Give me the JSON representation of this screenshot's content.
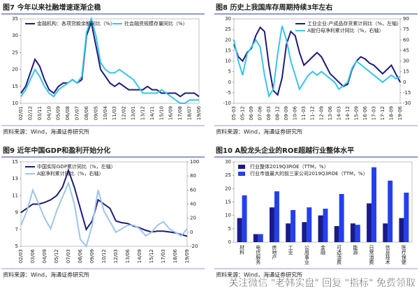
{
  "chart_data": [
    {
      "type": "line",
      "title": "图7  今年以来社融增速逐渐企稳",
      "source": "资料来源：Wind，海通证券研究所",
      "legend": "upper center",
      "categories": [
        "02/01",
        null,
        "02/12",
        null,
        "03/11",
        null,
        "04/10",
        null,
        "05/09",
        null,
        "06/08",
        null,
        "07/07",
        null,
        "08/06",
        null,
        "09/05",
        null,
        "10/04",
        null,
        "11/03",
        null,
        "12/02",
        null,
        "13/01",
        null,
        "13/12",
        null,
        "14/11",
        null,
        "15/10",
        null,
        "16/09",
        null,
        "17/08",
        null,
        "18/07",
        null,
        "19/06"
      ],
      "ylim": [
        10,
        35
      ],
      "yticks": [
        10,
        15,
        20,
        25,
        30,
        35
      ],
      "series": [
        {
          "name": "金融机构：各项贷款余额同比（%）",
          "color": "#1c1c78",
          "values": [
            13,
            15,
            19,
            23,
            21,
            17,
            14,
            13,
            15,
            16,
            16,
            17,
            16,
            17,
            30,
            34,
            27,
            20,
            18,
            16,
            15,
            16,
            15,
            14,
            14,
            14,
            14,
            15,
            14,
            14,
            13,
            13,
            13,
            13,
            12,
            13,
            13,
            13,
            12
          ]
        },
        {
          "name": "社会融资规模存量同比（%）",
          "color": "#38c4e8",
          "values": [
            12,
            14,
            17,
            20,
            18,
            15,
            13,
            12,
            14,
            15,
            16,
            17,
            16,
            18,
            31,
            35,
            30,
            22,
            20,
            19,
            19,
            20,
            19,
            18,
            17,
            15,
            13,
            13,
            13,
            13,
            14,
            13,
            12,
            11,
            10,
            10,
            11,
            11,
            11
          ]
        }
      ]
    },
    {
      "type": "line",
      "title": "图8  历史上我国库存周期持续3年左右",
      "source": "资料来源：Wind，海通证券研究所",
      "legend": "upper right",
      "categories": [
        "05-03",
        null,
        "05-12",
        null,
        "06-09",
        null,
        "07-06",
        null,
        "08-03",
        null,
        "08-12",
        null,
        "09-09",
        null,
        "10-06",
        null,
        "11-03",
        null,
        "11-12",
        null,
        "12-09",
        null,
        "13-06",
        null,
        "14-03",
        null,
        "14-12",
        null,
        "15-09",
        null,
        "16-06",
        null,
        "17-03",
        null,
        "17-12",
        null,
        "18-09",
        null,
        "19-06"
      ],
      "ylim": [
        -10,
        30
      ],
      "yticks": [
        -10,
        -5,
        0,
        5,
        10,
        15,
        20,
        25,
        30
      ],
      "y2lim": [
        -30,
        90
      ],
      "y2ticks": [
        -30,
        -15,
        0,
        15,
        30,
        45,
        60,
        75,
        90
      ],
      "series": [
        {
          "name": "工业企业:产成品存货累计同比（%，左轴）",
          "color": "#1c1c78",
          "values": [
            18,
            12,
            10,
            14,
            16,
            22,
            26,
            24,
            8,
            -4,
            -6,
            2,
            18,
            24,
            22,
            14,
            8,
            10,
            12,
            14,
            12,
            8,
            4,
            2,
            0,
            -2,
            -1,
            6,
            10,
            12,
            11,
            9,
            8,
            6,
            4,
            6,
            8,
            4,
            0
          ]
        },
        {
          "name": "A股归母净利累计同比（%，右轴）",
          "color": "#38c4e8",
          "axis": "y2",
          "values": [
            60,
            30,
            10,
            40,
            50,
            60,
            50,
            10,
            -20,
            -10,
            40,
            80,
            60,
            30,
            10,
            -10,
            0,
            10,
            15,
            10,
            15,
            10,
            5,
            0,
            -10,
            -5,
            0,
            20,
            30,
            25,
            20,
            15,
            10,
            5,
            0,
            5,
            10,
            5,
            8
          ]
        }
      ]
    },
    {
      "type": "line",
      "title": "图9  近年中国GDP和盈利开始分化",
      "source": "资料来源：Wind，海通证券研究所",
      "legend": "upper left",
      "categories": [
        "02/03",
        null,
        "03/06",
        null,
        "04/09",
        null,
        "05/12",
        null,
        "07/03",
        null,
        "08/06",
        null,
        "09/09",
        null,
        "10/12",
        null,
        "12/03",
        null,
        "13/06",
        null,
        "14/09",
        null,
        "15/12",
        null,
        "17/03",
        null,
        "18/06",
        null,
        "19/09"
      ],
      "ylim": [
        5,
        15
      ],
      "yticks": [
        5,
        7,
        9,
        11,
        13,
        15
      ],
      "y2lim": [
        -20,
        100
      ],
      "y2ticks": [
        -20,
        0,
        20,
        40,
        60,
        80,
        100
      ],
      "series": [
        {
          "name": "中国实际GDP累计同比（%，左轴）",
          "color": "#1c1c78",
          "values": [
            9,
            9.5,
            10,
            10,
            10.2,
            10.5,
            11,
            12,
            14,
            12,
            9.5,
            7,
            8,
            10.5,
            10,
            9.5,
            8,
            7.8,
            7.7,
            7.4,
            7.2,
            6.9,
            6.7,
            6.8,
            6.8,
            6.7,
            6.6,
            6.4,
            6.2
          ]
        },
        {
          "name": "A股净利累计同比（%，右轴）",
          "color": "#9ec5ea",
          "axis": "y2",
          "values": [
            10,
            30,
            60,
            40,
            20,
            5,
            30,
            50,
            70,
            40,
            -10,
            -20,
            10,
            60,
            30,
            15,
            0,
            5,
            10,
            10,
            5,
            -5,
            0,
            10,
            15,
            5,
            0,
            -5,
            5
          ]
        }
      ]
    },
    {
      "type": "bar",
      "title": "图10 A股龙头企业的ROE超越行业整体水平",
      "source": "资料来源：Wind，海通证券研究所",
      "legend": "upper left",
      "categories": [
        "材料",
        "电信服务",
        "房地产",
        "工业",
        "公用事业",
        "金融",
        "可选消费",
        "能源",
        "日常消费",
        "信息技术",
        "医疗保健"
      ],
      "ylim": [
        0,
        30
      ],
      "yticks": [
        0,
        5,
        10,
        15,
        20,
        25,
        30
      ],
      "series": [
        {
          "name": "行业整体2019Q3ROE（TTM，%）",
          "color": "#1a1a8c",
          "values": [
            9,
            3,
            13,
            7,
            7.5,
            10,
            6,
            7,
            14.5,
            7,
            9
          ]
        },
        {
          "name": "行业市值最大的前三家公司2019Q3ROE（TTM，%）",
          "color": "#2340ee",
          "values": [
            17.5,
            3,
            19,
            12,
            13,
            12.5,
            18,
            6.5,
            28,
            23,
            18.5
          ]
        }
      ]
    }
  ],
  "watermark": "关注微信 \"老韩实盘\" 回复 \"指标\" 免费领取"
}
